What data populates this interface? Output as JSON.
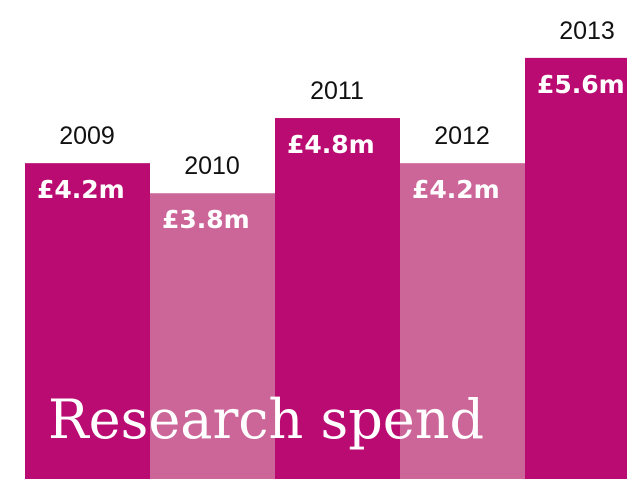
{
  "chart_data": {
    "type": "bar",
    "title": "Research spend",
    "categories": [
      "2009",
      "2010",
      "2011",
      "2012",
      "2013"
    ],
    "values": [
      4.2,
      3.8,
      4.8,
      4.2,
      5.6
    ],
    "value_labels": [
      "£4.2m",
      "£3.8m",
      "£4.8m",
      "£4.2m",
      "£5.6m"
    ],
    "unit": "£m",
    "ylim": [
      0,
      5.6
    ],
    "grid": false,
    "colors": [
      "#b90b71",
      "#cc6699",
      "#b90b71",
      "#cc6699",
      "#b90b71"
    ]
  }
}
